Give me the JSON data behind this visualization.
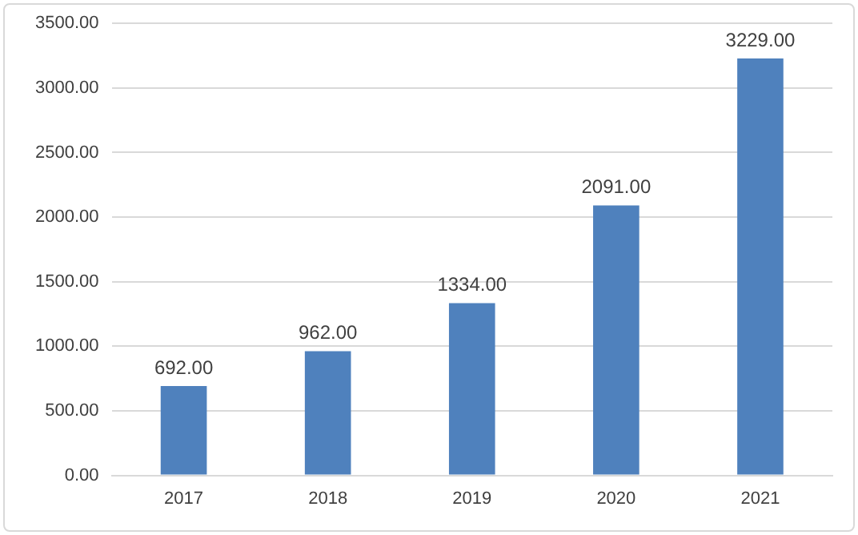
{
  "chart_data": {
    "type": "bar",
    "categories": [
      "2017",
      "2018",
      "2019",
      "2020",
      "2021"
    ],
    "values": [
      692,
      962,
      1334,
      2091,
      3229
    ],
    "color": "#4f81bd",
    "value_labels": [
      "692.00",
      "962.00",
      "1334.00",
      "2091.00",
      "3229.00"
    ],
    "ylim": [
      0,
      3500
    ],
    "yticks": [
      {
        "value": 0,
        "label": "0.00"
      },
      {
        "value": 500,
        "label": "500.00"
      },
      {
        "value": 1000,
        "label": "1000.00"
      },
      {
        "value": 1500,
        "label": "1500.00"
      },
      {
        "value": 2000,
        "label": "2000.00"
      },
      {
        "value": 2500,
        "label": "2500.00"
      },
      {
        "value": 3000,
        "label": "3000.00"
      },
      {
        "value": 3500,
        "label": "3500.00"
      }
    ],
    "grid": "y",
    "legend": false
  }
}
